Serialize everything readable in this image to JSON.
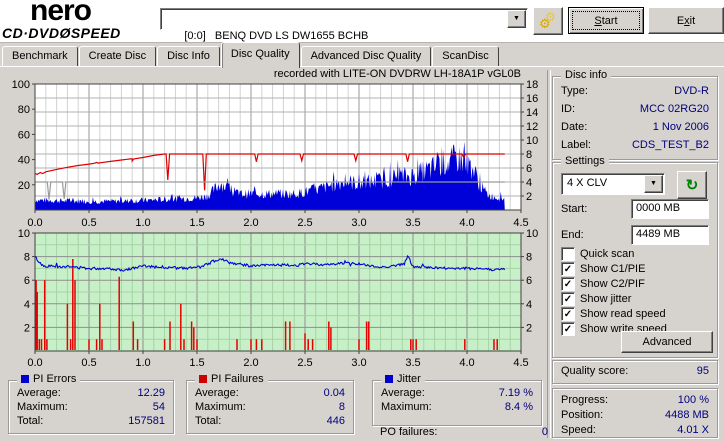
{
  "app": {
    "logo_line1": "nero",
    "logo_line2": "CD·DVDØSPEED",
    "drive": "[0:0]   BENQ DVD LS DW1655 BCHB",
    "start_label_html": "<u>S</u>tart",
    "exit_label_html": "E<u>x</u>it",
    "options_icon": "gears-icon"
  },
  "tabs": [
    {
      "label": "Benchmark",
      "active": false
    },
    {
      "label": "Create Disc",
      "active": false
    },
    {
      "label": "Disc Info",
      "active": false
    },
    {
      "label": "Disc Quality",
      "active": true
    },
    {
      "label": "Advanced Disc Quality",
      "active": false
    },
    {
      "label": "ScanDisc",
      "active": false
    }
  ],
  "chart_title": "recorded with LITE-ON DVDRW LH-18A1P   vGL0B",
  "chart_data": [
    {
      "type": "area",
      "name": "pi-errors-and-speed",
      "title": "recorded with LITE-ON DVDRW LH-18A1P   vGL0B",
      "xlim": [
        0,
        4.5
      ],
      "x_ticks": [
        "0.0",
        "0.5",
        "1.0",
        "1.5",
        "2.0",
        "2.5",
        "3.0",
        "3.5",
        "4.0",
        "4.5"
      ],
      "data_end_x": 4.35,
      "left_axis": {
        "range": [
          0,
          100
        ],
        "ticks": [
          100,
          80,
          60,
          40,
          20
        ]
      },
      "right_axis": {
        "range": [
          0,
          18
        ],
        "ticks": [
          18,
          16,
          14,
          12,
          10,
          8,
          6,
          4,
          2
        ]
      },
      "grid": true,
      "series": [
        {
          "name": "PI Errors",
          "type": "noisy-area",
          "axis": "left",
          "color": "#0000d8",
          "points": [
            [
              0,
              10
            ],
            [
              0.3,
              9
            ],
            [
              0.6,
              8.5
            ],
            [
              0.9,
              9
            ],
            [
              1.2,
              10.5
            ],
            [
              1.5,
              12
            ],
            [
              1.6,
              14
            ],
            [
              1.65,
              19
            ],
            [
              1.72,
              27
            ],
            [
              1.78,
              22
            ],
            [
              1.85,
              16
            ],
            [
              2.0,
              16
            ],
            [
              2.2,
              16
            ],
            [
              2.4,
              16
            ],
            [
              2.5,
              18
            ],
            [
              2.6,
              20
            ],
            [
              2.7,
              23
            ],
            [
              2.8,
              27
            ],
            [
              2.9,
              28
            ],
            [
              3.0,
              26
            ],
            [
              3.1,
              28
            ],
            [
              3.2,
              29
            ],
            [
              3.3,
              32
            ],
            [
              3.4,
              33
            ],
            [
              3.5,
              34
            ],
            [
              3.6,
              38
            ],
            [
              3.7,
              42
            ],
            [
              3.75,
              46
            ],
            [
              3.85,
              48
            ],
            [
              3.9,
              52
            ],
            [
              3.95,
              50
            ],
            [
              4.0,
              47
            ],
            [
              4.05,
              42
            ],
            [
              4.1,
              30
            ],
            [
              4.15,
              20
            ],
            [
              4.2,
              15
            ],
            [
              4.25,
              13
            ],
            [
              4.35,
              11
            ]
          ]
        },
        {
          "name": "Write speed",
          "type": "line",
          "axis": "right",
          "color": "#dc0000",
          "points": [
            [
              0,
              5.2
            ],
            [
              0.02,
              5.1
            ],
            [
              0.05,
              5.35
            ],
            [
              0.07,
              5.2
            ],
            [
              0.1,
              5.45
            ],
            [
              0.2,
              5.8
            ],
            [
              0.3,
              6.1
            ],
            [
              0.4,
              6.35
            ],
            [
              0.5,
              6.55
            ],
            [
              0.6,
              6.75
            ],
            [
              0.7,
              6.95
            ],
            [
              0.8,
              7.15
            ],
            [
              0.9,
              7.3
            ],
            [
              1.0,
              7.5
            ],
            [
              1.1,
              7.8
            ],
            [
              1.2,
              8.0
            ],
            [
              4.35,
              8.0
            ]
          ],
          "dips": [
            [
              0.57,
              6.8
            ],
            [
              0.9,
              7.0
            ],
            [
              1.23,
              4.3
            ],
            [
              1.57,
              2.8
            ],
            [
              2.05,
              6.9
            ],
            [
              2.47,
              7.05
            ],
            [
              2.97,
              7.05
            ],
            [
              3.45,
              6.9
            ],
            [
              3.97,
              7.45
            ]
          ]
        },
        {
          "name": "Read speed",
          "type": "line",
          "axis": "right",
          "color": "#9a9a9a",
          "points": [
            [
              0,
              4
            ],
            [
              4.35,
              4
            ]
          ],
          "dips": [
            [
              0.13,
              1.5
            ],
            [
              0.27,
              1.6
            ]
          ]
        }
      ]
    },
    {
      "type": "mixed",
      "name": "jitter-and-pi-failures",
      "plot_bg": "#c8f0c8",
      "xlim": [
        0,
        4.5
      ],
      "x_ticks": [
        "0.0",
        "0.5",
        "1.0",
        "1.5",
        "2.0",
        "2.5",
        "3.0",
        "3.5",
        "4.0",
        "4.5"
      ],
      "data_end_x": 4.35,
      "left_axis": {
        "range": [
          0,
          10
        ],
        "ticks": [
          10,
          8,
          6,
          4,
          2
        ]
      },
      "right_axis": {
        "range": [
          0,
          10
        ],
        "ticks": [
          10,
          8,
          6,
          4,
          2
        ]
      },
      "grid": true,
      "series": [
        {
          "name": "PI Failures",
          "type": "bars",
          "axis": "left",
          "color": "#e60000",
          "bars": [
            [
              0.01,
              6
            ],
            [
              0.02,
              5
            ],
            [
              0.04,
              1
            ],
            [
              0.06,
              1
            ],
            [
              0.09,
              6
            ],
            [
              0.11,
              1
            ],
            [
              0.3,
              4
            ],
            [
              0.33,
              1
            ],
            [
              0.35,
              7.8
            ],
            [
              0.37,
              6
            ],
            [
              0.5,
              1
            ],
            [
              0.57,
              1
            ],
            [
              0.6,
              4
            ],
            [
              0.62,
              1
            ],
            [
              0.78,
              6.3
            ],
            [
              0.91,
              2.5
            ],
            [
              0.95,
              1
            ],
            [
              1.2,
              1
            ],
            [
              1.25,
              2.5
            ],
            [
              1.35,
              4
            ],
            [
              1.38,
              1
            ],
            [
              1.45,
              2.5
            ],
            [
              1.47,
              2
            ],
            [
              1.5,
              1
            ],
            [
              1.87,
              1
            ],
            [
              2.0,
              1
            ],
            [
              2.05,
              1
            ],
            [
              2.1,
              1
            ],
            [
              2.32,
              2.5
            ],
            [
              2.36,
              2.5
            ],
            [
              2.5,
              1.5
            ],
            [
              2.53,
              1
            ],
            [
              2.57,
              1
            ],
            [
              2.72,
              2.5
            ],
            [
              2.74,
              2
            ],
            [
              3.0,
              1
            ],
            [
              3.07,
              2.5
            ],
            [
              3.09,
              2.5
            ],
            [
              3.48,
              1
            ],
            [
              3.5,
              1
            ],
            [
              3.53,
              1
            ],
            [
              3.98,
              1
            ],
            [
              4.25,
              1
            ],
            [
              4.28,
              1
            ]
          ]
        },
        {
          "name": "Jitter",
          "type": "noisy-line",
          "axis": "left",
          "color": "#0000d8",
          "noise": 0.11,
          "points": [
            [
              0,
              8.0
            ],
            [
              0.04,
              7.5
            ],
            [
              0.08,
              7.2
            ],
            [
              0.3,
              7.15
            ],
            [
              0.5,
              7.0
            ],
            [
              0.7,
              7.0
            ],
            [
              0.8,
              6.85
            ],
            [
              0.9,
              7.0
            ],
            [
              1.0,
              7.2
            ],
            [
              1.2,
              7.1
            ],
            [
              1.4,
              7.0
            ],
            [
              1.55,
              7.15
            ],
            [
              1.65,
              7.6
            ],
            [
              1.72,
              7.85
            ],
            [
              1.8,
              7.5
            ],
            [
              1.9,
              7.35
            ],
            [
              2.0,
              7.2
            ],
            [
              2.2,
              7.3
            ],
            [
              2.4,
              7.25
            ],
            [
              2.55,
              7.4
            ],
            [
              2.7,
              7.3
            ],
            [
              2.85,
              7.45
            ],
            [
              3.0,
              7.4
            ],
            [
              3.1,
              7.2
            ],
            [
              3.2,
              7.1
            ],
            [
              3.3,
              7.2
            ],
            [
              3.42,
              7.35
            ],
            [
              3.45,
              8.1
            ],
            [
              3.5,
              7.15
            ],
            [
              3.7,
              7.05
            ],
            [
              3.9,
              7.0
            ],
            [
              4.1,
              7.0
            ],
            [
              4.25,
              6.9
            ],
            [
              4.35,
              6.9
            ]
          ]
        }
      ]
    }
  ],
  "disc_info": {
    "title": "Disc info",
    "rows": [
      {
        "label": "Type:",
        "value": "DVD-R"
      },
      {
        "label": "ID:",
        "value": "MCC 02RG20"
      },
      {
        "label": "Date:",
        "value": "1 Nov 2006"
      },
      {
        "label": "Label:",
        "value": "CDS_TEST_B2"
      }
    ]
  },
  "settings": {
    "title": "Settings",
    "speed_selected": "4 X CLV",
    "refresh_icon": "refresh-icon",
    "start": {
      "label": "Start:",
      "value": "0000 MB"
    },
    "end": {
      "label": "End:",
      "value": "4489 MB"
    },
    "checkboxes": [
      {
        "label": "Quick scan",
        "checked": false
      },
      {
        "label": "Show C1/PIE",
        "checked": true
      },
      {
        "label": "Show C2/PIF",
        "checked": true
      },
      {
        "label": "Show jitter",
        "checked": true
      },
      {
        "label": "Show read speed",
        "checked": true
      },
      {
        "label": "Show write speed",
        "checked": true
      }
    ],
    "advanced_label": "Advanced"
  },
  "quality": {
    "label": "Quality score:",
    "value": "95"
  },
  "progress": {
    "rows": [
      {
        "label": "Progress:",
        "value": "100 %"
      },
      {
        "label": "Position:",
        "value": "4488 MB"
      },
      {
        "label": "Speed:",
        "value": "4.01 X"
      }
    ]
  },
  "stats": [
    {
      "title": "PI Errors",
      "color": "#0000cc",
      "rows": [
        {
          "label": "Average:",
          "value": "12.29"
        },
        {
          "label": "Maximum:",
          "value": "54"
        },
        {
          "label": "Total:",
          "value": "157581"
        }
      ]
    },
    {
      "title": "PI Failures",
      "color": "#cc0000",
      "rows": [
        {
          "label": "Average:",
          "value": "0.04"
        },
        {
          "label": "Maximum:",
          "value": "8"
        },
        {
          "label": "Total:",
          "value": "446"
        }
      ]
    },
    {
      "title": "Jitter",
      "color": "#0000cc",
      "rows": [
        {
          "label": "Average:",
          "value": "7.19 %"
        },
        {
          "label": "Maximum:",
          "value": "8.4 %"
        }
      ],
      "footer": {
        "label": "PO failures:",
        "value": "0"
      }
    }
  ]
}
